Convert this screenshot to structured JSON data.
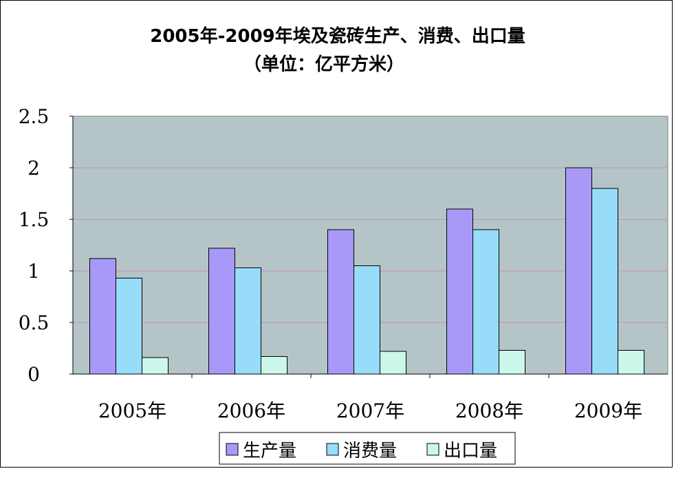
{
  "chart_data": {
    "type": "bar",
    "title": "2005年-2009年埃及瓷砖生产、消费、出口量",
    "subtitle": "（单位：亿平方米）",
    "categories": [
      "2005年",
      "2006年",
      "2007年",
      "2008年",
      "2009年"
    ],
    "series": [
      {
        "name": "生产量",
        "color": "#a899f8",
        "values": [
          1.12,
          1.22,
          1.4,
          1.6,
          2.0
        ]
      },
      {
        "name": "消费量",
        "color": "#97dcf8",
        "values": [
          0.93,
          1.03,
          1.05,
          1.4,
          1.8
        ]
      },
      {
        "name": "出口量",
        "color": "#ccf8ec",
        "values": [
          0.16,
          0.17,
          0.22,
          0.23,
          0.23
        ]
      }
    ],
    "yticks": [
      "0",
      "0.5",
      "1",
      "1.5",
      "2",
      "2.5"
    ],
    "ylim": [
      0,
      2.5
    ],
    "grid": true,
    "legend": "bottom",
    "plot_bg": "#b5c5c7",
    "gridline_color": "#c090c0"
  }
}
